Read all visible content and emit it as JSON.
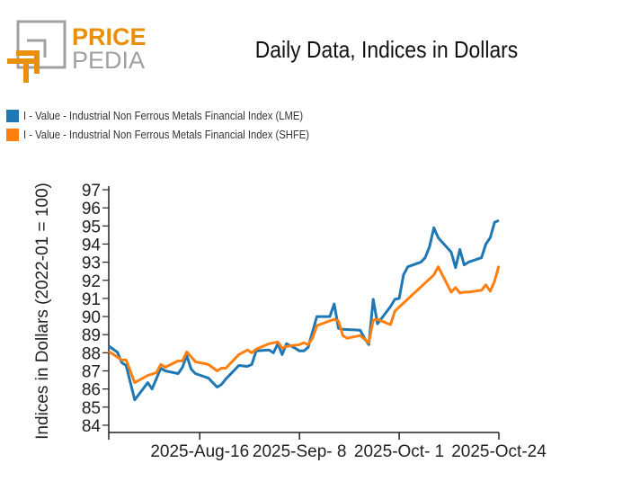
{
  "logo": {
    "line1": "PRICE",
    "line2": "PEDIA",
    "colors": {
      "orange": "#E8900A",
      "gray": "#A0A0A0"
    }
  },
  "chart_data": {
    "type": "line",
    "title": "Daily Data, Indices in Dollars",
    "xlabel": "",
    "ylabel": "Indices in Dollars (2022-01 = 100)",
    "xlim": [
      "2025-07-26",
      "2025-10-24"
    ],
    "ylim": [
      83.6,
      97.2
    ],
    "x_ticks": [
      {
        "date": "2025-07-26",
        "label": ""
      },
      {
        "date": "2025-08-16",
        "label": "2025-Aug-16"
      },
      {
        "date": "2025-09-08",
        "label": "2025-Sep- 8"
      },
      {
        "date": "2025-10-01",
        "label": "2025-Oct- 1"
      },
      {
        "date": "2025-10-24",
        "label": "2025-Oct-24"
      }
    ],
    "y_ticks": [
      84,
      85,
      86,
      87,
      88,
      89,
      90,
      91,
      92,
      93,
      94,
      95,
      96,
      97
    ],
    "grid": false,
    "legend_position": "top-left",
    "series": [
      {
        "name": "I - Value - Industrial Non Ferrous Metals Financial Index (LME)",
        "color": "#1F77B4",
        "x": [
          "2025-07-26",
          "2025-07-28",
          "2025-07-29",
          "2025-07-30",
          "2025-08-01",
          "2025-08-04",
          "2025-08-05",
          "2025-08-07",
          "2025-08-08",
          "2025-08-11",
          "2025-08-12",
          "2025-08-13",
          "2025-08-14",
          "2025-08-15",
          "2025-08-18",
          "2025-08-19",
          "2025-08-20",
          "2025-08-21",
          "2025-08-22",
          "2025-08-25",
          "2025-08-27",
          "2025-08-28",
          "2025-08-29",
          "2025-09-01",
          "2025-09-02",
          "2025-09-03",
          "2025-09-04",
          "2025-09-05",
          "2025-09-07",
          "2025-09-08",
          "2025-09-09",
          "2025-09-10",
          "2025-09-12",
          "2025-09-15",
          "2025-09-16",
          "2025-09-17",
          "2025-09-18",
          "2025-09-22",
          "2025-09-23",
          "2025-09-24",
          "2025-09-25",
          "2025-09-26",
          "2025-09-29",
          "2025-09-30",
          "2025-10-01",
          "2025-10-02",
          "2025-10-03",
          "2025-10-06",
          "2025-10-07",
          "2025-10-08",
          "2025-10-09",
          "2025-10-10",
          "2025-10-13",
          "2025-10-14",
          "2025-10-15",
          "2025-10-16",
          "2025-10-17",
          "2025-10-20",
          "2025-10-21",
          "2025-10-22",
          "2025-10-23",
          "2025-10-24"
        ],
        "y": [
          88.37,
          88.03,
          87.45,
          87.3,
          85.4,
          86.35,
          86.0,
          87.15,
          87.0,
          86.85,
          87.2,
          87.85,
          87.1,
          86.85,
          86.6,
          86.35,
          86.1,
          86.25,
          86.55,
          87.3,
          87.25,
          87.35,
          88.1,
          88.15,
          88.0,
          88.5,
          87.9,
          88.5,
          88.25,
          88.1,
          88.1,
          88.3,
          90.0,
          90.0,
          90.7,
          89.35,
          89.3,
          89.25,
          88.8,
          88.45,
          90.95,
          89.6,
          90.55,
          90.95,
          91.0,
          92.3,
          92.75,
          93.0,
          93.25,
          93.85,
          94.9,
          94.35,
          93.55,
          92.7,
          93.7,
          92.85,
          93.0,
          93.25,
          94.0,
          94.35,
          95.2,
          95.3
        ]
      },
      {
        "name": "I - Value - Industrial Non Ferrous Metals Financial Index (SHFE)",
        "color": "#FF7F0E",
        "x": [
          "2025-07-26",
          "2025-07-29",
          "2025-07-30",
          "2025-08-01",
          "2025-08-04",
          "2025-08-06",
          "2025-08-07",
          "2025-08-08",
          "2025-08-11",
          "2025-08-12",
          "2025-08-13",
          "2025-08-15",
          "2025-08-18",
          "2025-08-20",
          "2025-08-21",
          "2025-08-22",
          "2025-08-25",
          "2025-08-27",
          "2025-08-28",
          "2025-08-29",
          "2025-09-01",
          "2025-09-03",
          "2025-09-04",
          "2025-09-05",
          "2025-09-08",
          "2025-09-09",
          "2025-09-10",
          "2025-09-11",
          "2025-09-12",
          "2025-09-16",
          "2025-09-17",
          "2025-09-18",
          "2025-09-19",
          "2025-09-22",
          "2025-09-24",
          "2025-09-25",
          "2025-09-26",
          "2025-09-29",
          "2025-09-30",
          "2025-10-09",
          "2025-10-10",
          "2025-10-13",
          "2025-10-14",
          "2025-10-15",
          "2025-10-16",
          "2025-10-17",
          "2025-10-20",
          "2025-10-21",
          "2025-10-22",
          "2025-10-23",
          "2025-10-24"
        ],
        "y": [
          88.07,
          87.6,
          87.6,
          86.35,
          86.75,
          86.9,
          87.35,
          87.2,
          87.55,
          87.55,
          88.05,
          87.5,
          87.35,
          87.0,
          87.15,
          87.15,
          87.9,
          88.15,
          88.0,
          88.2,
          88.5,
          88.6,
          88.25,
          88.35,
          88.45,
          88.55,
          88.45,
          88.8,
          89.5,
          89.85,
          89.75,
          88.95,
          88.8,
          88.95,
          88.55,
          89.8,
          89.85,
          89.55,
          90.3,
          92.3,
          92.75,
          91.35,
          91.6,
          91.3,
          91.35,
          91.35,
          91.45,
          91.75,
          91.4,
          91.95,
          92.8
        ]
      }
    ]
  }
}
